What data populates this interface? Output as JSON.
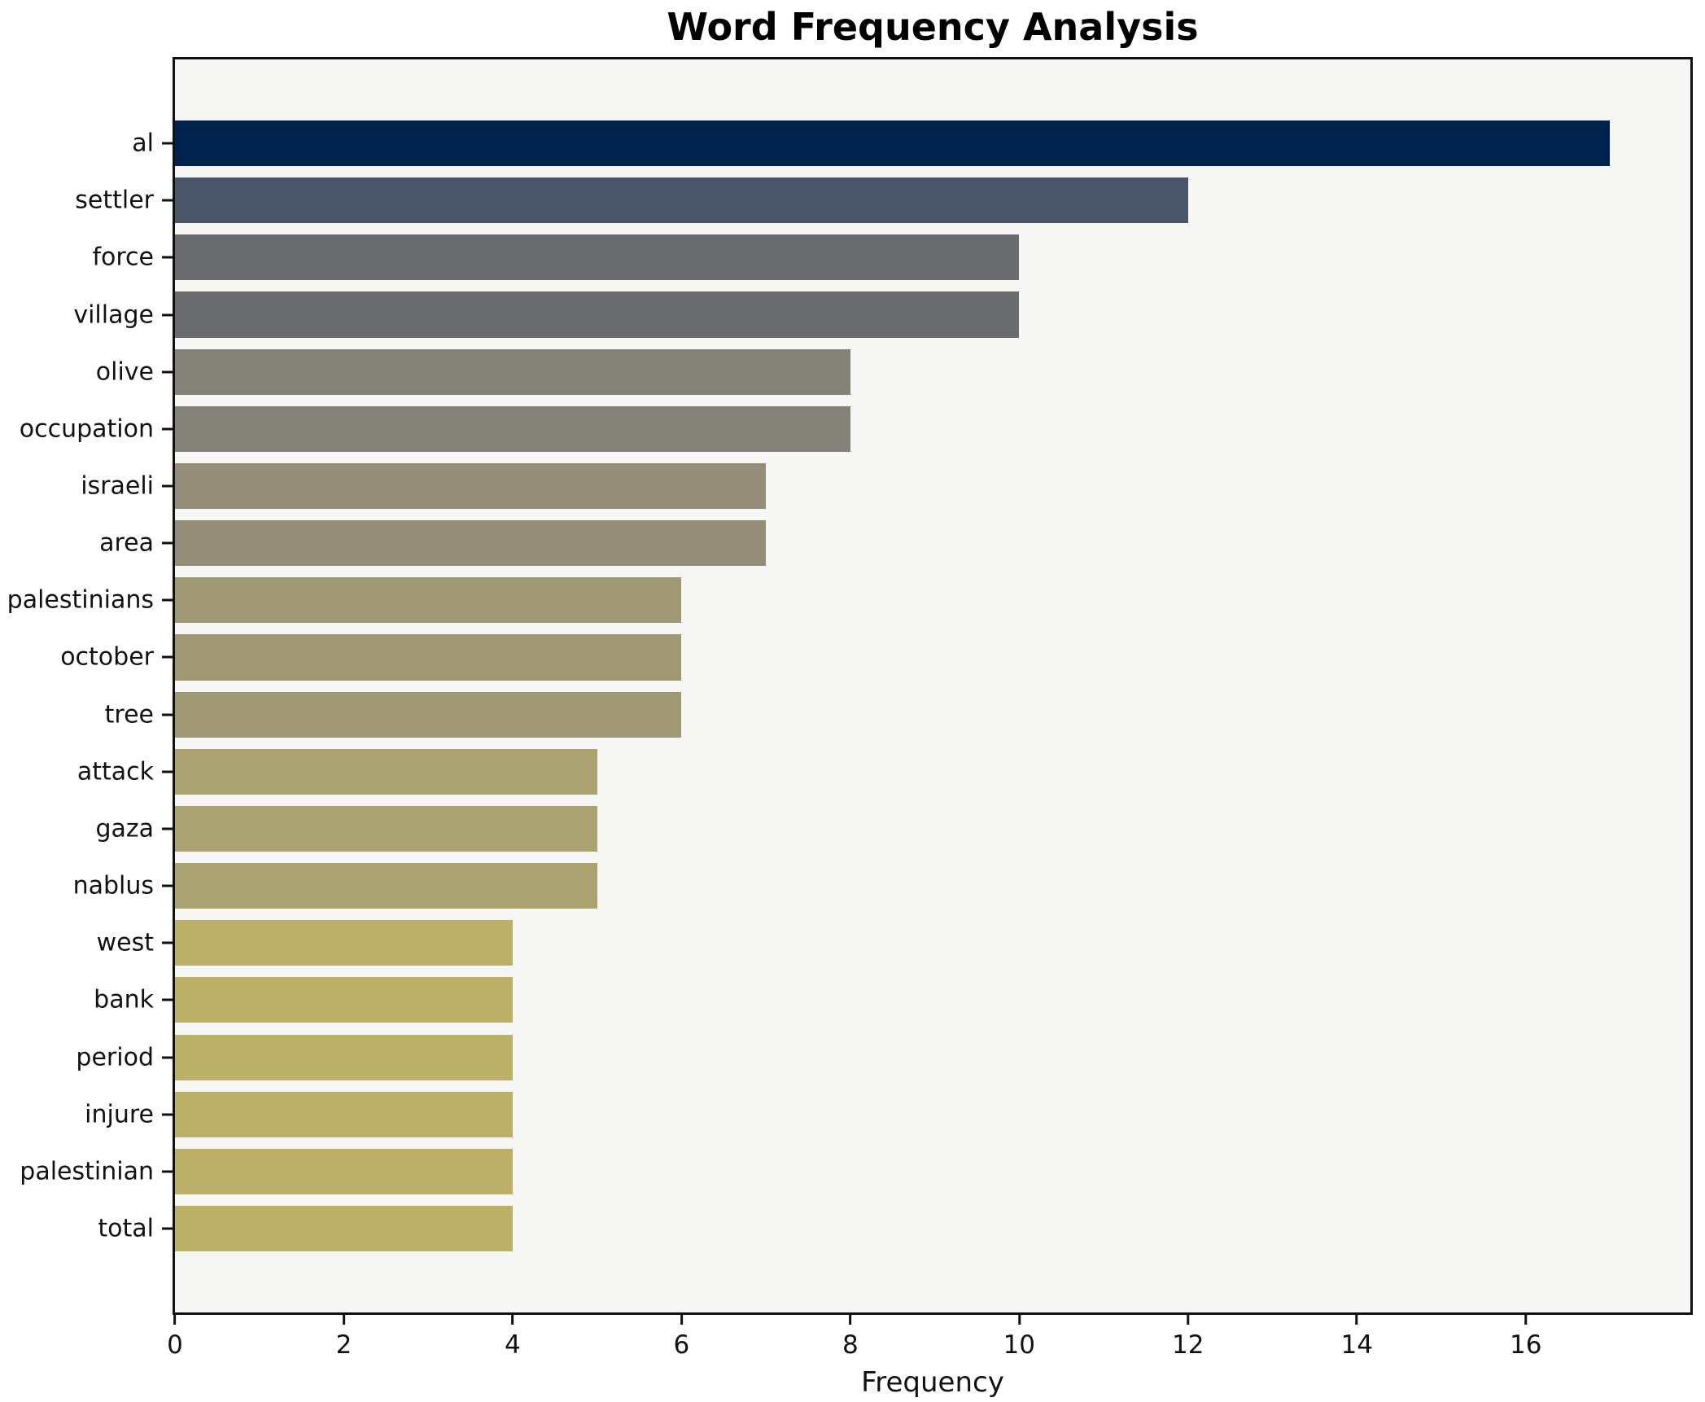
{
  "chart_data": {
    "type": "bar",
    "orientation": "horizontal",
    "title": "Word Frequency Analysis",
    "xlabel": "Frequency",
    "ylabel": "",
    "xlim": [
      0,
      17.95
    ],
    "xticks": [
      0,
      2,
      4,
      6,
      8,
      10,
      12,
      14,
      16
    ],
    "grid": false,
    "legend": false,
    "figure_bg": "#ffffff",
    "plot_bg": "#f6f6f5",
    "spine_color": "#111111",
    "categories": [
      "al",
      "settler",
      "force",
      "village",
      "olive",
      "occupation",
      "israeli",
      "area",
      "palestinians",
      "october",
      "tree",
      "attack",
      "gaza",
      "nablus",
      "west",
      "bank",
      "period",
      "injure",
      "palestinian",
      "total"
    ],
    "values": [
      17,
      12,
      10,
      10,
      8,
      8,
      7,
      7,
      6,
      6,
      6,
      5,
      5,
      5,
      4,
      4,
      4,
      4,
      4,
      4
    ],
    "bar_colors": [
      "#00224e",
      "#4b5569",
      "#696b6f",
      "#696b6f",
      "#848178",
      "#848178",
      "#948e78",
      "#948e78",
      "#a09773",
      "#a09773",
      "#a09773",
      "#aaa271",
      "#aaa271",
      "#aaa271",
      "#bdb069",
      "#bdb069",
      "#bdb069",
      "#bdb069",
      "#bdb069",
      "#bdb069"
    ]
  }
}
